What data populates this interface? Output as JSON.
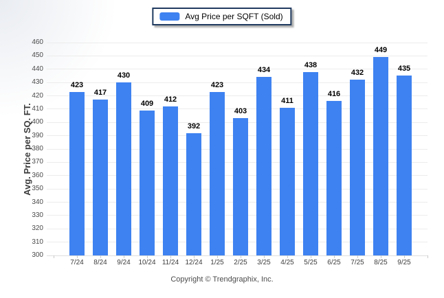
{
  "legend": {
    "label": "Avg Price per SQFT (Sold)",
    "swatch_color": "#3e82f1"
  },
  "y_axis": {
    "title": "Avg. Price per SQ. FT."
  },
  "footer": {
    "copyright": "Copyright © Trendgraphix, Inc."
  },
  "chart_data": {
    "type": "bar",
    "title": "",
    "categories": [
      "7/24",
      "8/24",
      "9/24",
      "10/24",
      "11/24",
      "12/24",
      "1/25",
      "2/25",
      "3/25",
      "4/25",
      "5/25",
      "6/25",
      "7/25",
      "8/25",
      "9/25"
    ],
    "values": [
      423,
      417,
      430,
      409,
      412,
      392,
      423,
      403,
      434,
      411,
      438,
      416,
      432,
      449,
      435
    ],
    "series": [
      {
        "name": "Avg Price per SQFT (Sold)",
        "values": [
          423,
          417,
          430,
          409,
          412,
          392,
          423,
          403,
          434,
          411,
          438,
          416,
          432,
          449,
          435
        ]
      }
    ],
    "xlabel": "",
    "ylabel": "Avg. Price per SQ. FT.",
    "ylim": [
      300,
      460
    ],
    "ytick_step": 10,
    "grid": "horizontal",
    "legend_position": "top-center",
    "bar_color": "#3e82f1",
    "value_labels": "above-bars"
  }
}
